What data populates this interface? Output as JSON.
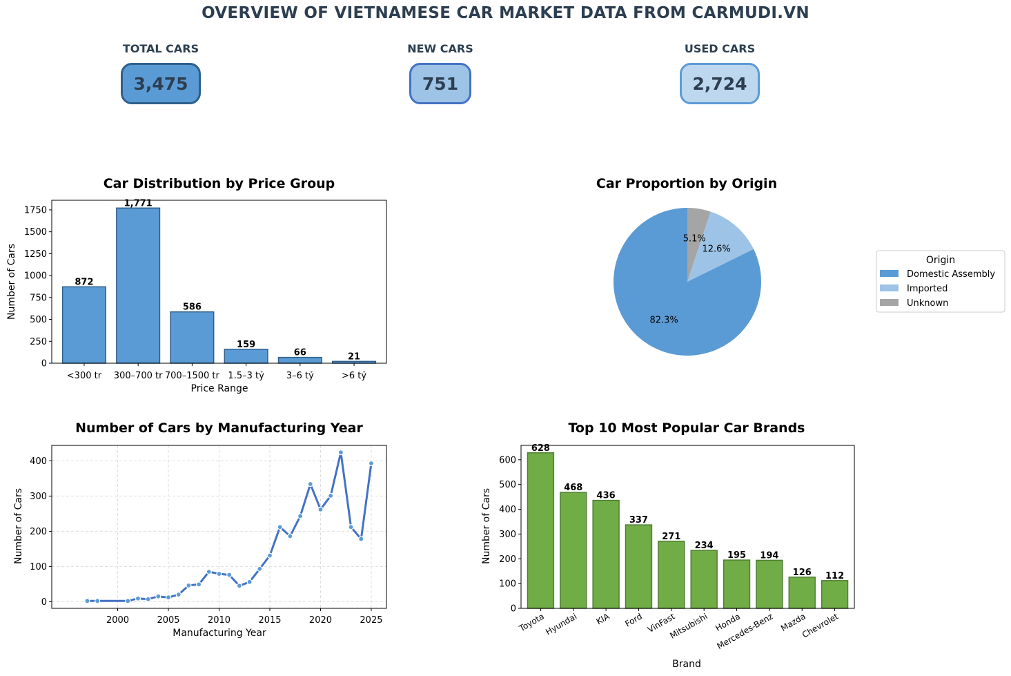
{
  "title": "OVERVIEW OF VIETNAMESE CAR MARKET DATA FROM CARMUDI.VN",
  "kpis": [
    {
      "label": "TOTAL CARS",
      "value": "3,475",
      "fill": "#5b9bd5",
      "border": "#2f5f8a"
    },
    {
      "label": "NEW CARS",
      "value": "751",
      "fill": "#9dc3e6",
      "border": "#4472c4"
    },
    {
      "label": "USED CARS",
      "value": "2,724",
      "fill": "#bdd7ee",
      "border": "#5b9bd5"
    }
  ],
  "colors": {
    "blue_bar": "#5b9bd5",
    "blue_edge": "#2f5f8a",
    "green_bar": "#70ad47",
    "green_edge": "#507e32",
    "line": "#4472c4",
    "marker": "#5b9bd5",
    "imported": "#9dc3e6",
    "unknown": "#a5a5a5"
  },
  "chart_data": [
    {
      "type": "bar",
      "title": "Car Distribution by Price Group",
      "xlabel": "Price Range",
      "ylabel": "Number of Cars",
      "categories": [
        "<300 tr",
        "300–700 tr",
        "700–1500 tr",
        "1.5–3 tỷ",
        "3–6 tỷ",
        ">6 tỷ"
      ],
      "values": [
        872,
        1771,
        586,
        159,
        66,
        21
      ],
      "value_labels": [
        "872",
        "1,771",
        "586",
        "159",
        "66",
        "21"
      ],
      "ylim": [
        0,
        1860
      ],
      "yticks": [
        0,
        250,
        500,
        750,
        1000,
        1250,
        1500,
        1750
      ],
      "grid": false
    },
    {
      "type": "pie",
      "title": "Car Proportion by Origin",
      "legend_title": "Origin",
      "legend_position": "right",
      "labels": [
        "Domestic Assembly",
        "Imported",
        "Unknown"
      ],
      "values": [
        82.3,
        12.6,
        5.1
      ],
      "pct_labels": [
        "82.3%",
        "12.6%",
        "5.1%"
      ],
      "colors": [
        "#5b9bd5",
        "#9dc3e6",
        "#a5a5a5"
      ]
    },
    {
      "type": "line",
      "title": "Number of Cars by Manufacturing Year",
      "xlabel": "Manufacturing Year",
      "ylabel": "Number of Cars",
      "x": [
        1997,
        1998,
        2001,
        2002,
        2003,
        2004,
        2005,
        2006,
        2007,
        2008,
        2009,
        2010,
        2011,
        2012,
        2013,
        2014,
        2015,
        2016,
        2017,
        2018,
        2019,
        2020,
        2021,
        2022,
        2023,
        2024,
        2025
      ],
      "y": [
        2,
        2,
        2,
        9,
        7,
        15,
        12,
        20,
        46,
        49,
        85,
        79,
        76,
        45,
        56,
        93,
        131,
        212,
        186,
        243,
        334,
        262,
        301,
        424,
        212,
        178,
        393
      ],
      "xlim": [
        1993.5,
        2026.5
      ],
      "ylim": [
        -19,
        444
      ],
      "xticks": [
        2000,
        2005,
        2010,
        2015,
        2020,
        2025
      ],
      "yticks": [
        0,
        100,
        200,
        300,
        400
      ],
      "grid": true
    },
    {
      "type": "bar",
      "title": "Top 10 Most Popular Car Brands",
      "xlabel": "Brand",
      "ylabel": "Number of Cars",
      "categories": [
        "Toyota",
        "Hyundai",
        "KIA",
        "Ford",
        "VinFast",
        "Mitsubishi",
        "Honda",
        "Mercedes-Benz",
        "Mazda",
        "Chevrolet"
      ],
      "values": [
        628,
        468,
        436,
        337,
        271,
        234,
        195,
        194,
        126,
        112
      ],
      "value_labels": [
        "628",
        "468",
        "436",
        "337",
        "271",
        "234",
        "195",
        "194",
        "126",
        "112"
      ],
      "ylim": [
        0,
        658
      ],
      "yticks": [
        0,
        100,
        200,
        300,
        400,
        500,
        600
      ],
      "grid": false
    }
  ]
}
